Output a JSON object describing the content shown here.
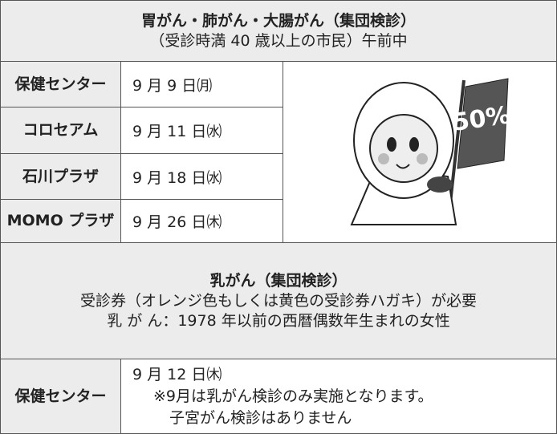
{
  "section1": {
    "title": "胃がん・肺がん・大腸がん（集団検診）",
    "subtitle": "（受診時満 40 歳以上の市民）午前中",
    "rows": [
      [
        "保健センター",
        "9 月 9 日㈪"
      ],
      [
        "コロセアム",
        "9 月 11 日㈬"
      ],
      [
        "石川プラザ",
        "9 月 18 日㈬"
      ],
      [
        "MOMO プラザ",
        "9 月 26 日㈭"
      ]
    ],
    "mascot_flag": "50%"
  },
  "section2": {
    "title": "乳がん（集団検診）",
    "lines": [
      "受診券（オレンジ色もしくは黄色の受診券ハガキ）が必要",
      "乳 が ん：1978 年以前の西暦偶数年生まれの女性"
    ],
    "row": {
      "place": "保健センター",
      "date": "9 月 12 日㈭",
      "notes": [
        "※9月は乳がん検診のみ実施となります。",
        "子宮がん検診はありません"
      ]
    }
  }
}
